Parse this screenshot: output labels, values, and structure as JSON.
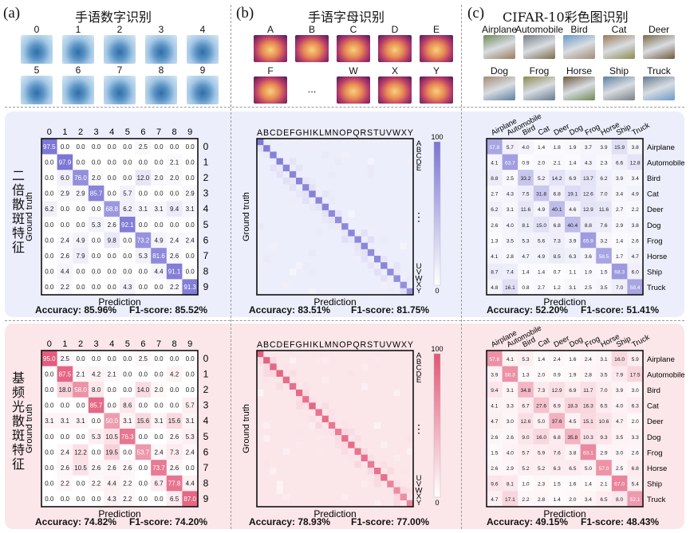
{
  "panels": [
    {
      "letter": "(a)",
      "title": "手语数字识别",
      "thumbs": [
        "0",
        "1",
        "2",
        "3",
        "4",
        "5",
        "6",
        "7",
        "8",
        "9"
      ]
    },
    {
      "letter": "(b)",
      "title": "手语字母识别",
      "thumbs": [
        "A",
        "B",
        "C",
        "D",
        "E",
        "F",
        "...",
        "W",
        "X",
        "Y"
      ]
    },
    {
      "letter": "(c)",
      "title": "CIFAR-10彩色图识别",
      "thumbs": [
        "Airplane",
        "Automobile",
        "Bird",
        "Cat",
        "Deer",
        "Dog",
        "Frog",
        "Horse",
        "Ship",
        "Truck"
      ]
    }
  ],
  "row_labels": {
    "top": "二倍散斑特征",
    "bottom": "基频光散斑特征"
  },
  "axis": {
    "ground_truth": "Ground truth",
    "prediction": "Prediction"
  },
  "letters": [
    "A",
    "B",
    "C",
    "D",
    "E",
    "F",
    "G",
    "H",
    "I",
    "K",
    "L",
    "M",
    "N",
    "O",
    "P",
    "Q",
    "R",
    "S",
    "T",
    "U",
    "V",
    "W",
    "X",
    "Y"
  ],
  "letters_header": "ABCDEFGHIKLMNOPQRSTUVWXY",
  "letters_right_top": [
    "A",
    "B",
    "C",
    "D",
    "E"
  ],
  "letters_right_bottom": [
    "U",
    "V",
    "W",
    "X",
    "Y"
  ],
  "vertical_ellipsis": "⋮",
  "colors": {
    "top_band": "#eceefb",
    "bottom_band": "#fbe6ea",
    "top_accent": "#7a74d4",
    "bottom_accent": "#e25576"
  },
  "metrics": {
    "a_top": {
      "acc": "Accuracy: 85.96%",
      "f1": "F1-score: 85.52%"
    },
    "b_top": {
      "acc": "Accuracy: 83.51%",
      "f1": "F1-score: 81.75%"
    },
    "c_top": {
      "acc": "Accuracy: 52.20%",
      "f1": "F1-score: 51.41%"
    },
    "a_bot": {
      "acc": "Accuracy: 74.82%",
      "f1": "F1-score: 74.20%"
    },
    "b_bot": {
      "acc": "Accuracy: 78.93%",
      "f1": "F1-score: 77.00%"
    },
    "c_bot": {
      "acc": "Accuracy: 49.15%",
      "f1": "F1-score: 48.43%"
    }
  },
  "chart_data": [
    {
      "id": "a_top",
      "type": "heatmap",
      "title": "手语数字识别 — 二倍散斑特征",
      "categories": [
        "0",
        "1",
        "2",
        "3",
        "4",
        "5",
        "6",
        "7",
        "8",
        "9"
      ],
      "xlabel": "Prediction",
      "ylabel": "Ground truth",
      "values": [
        [
          97.5,
          0.0,
          0.0,
          0.0,
          0.0,
          0.0,
          2.5,
          0.0,
          0.0,
          0.0
        ],
        [
          0.0,
          97.9,
          0.0,
          0.0,
          0.0,
          0.0,
          0.0,
          0.0,
          2.1,
          0.0
        ],
        [
          0.0,
          6.0,
          76.0,
          2.0,
          0.0,
          0.0,
          12.0,
          2.0,
          2.0,
          0.0
        ],
        [
          0.0,
          2.9,
          2.9,
          85.7,
          0.0,
          5.7,
          0.0,
          0.0,
          0.0,
          2.9
        ],
        [
          6.2,
          0.0,
          0.0,
          0.0,
          68.8,
          6.2,
          3.1,
          3.1,
          9.4,
          3.1
        ],
        [
          0.0,
          0.0,
          0.0,
          5.3,
          2.6,
          92.1,
          0.0,
          0.0,
          0.0,
          0.0
        ],
        [
          0.0,
          2.4,
          4.9,
          0.0,
          9.8,
          0.0,
          73.2,
          4.9,
          2.4,
          2.4
        ],
        [
          0.0,
          2.6,
          7.9,
          0.0,
          0.0,
          0.0,
          5.3,
          81.6,
          2.6,
          0.0
        ],
        [
          0.0,
          4.4,
          0.0,
          0.0,
          0.0,
          0.0,
          0.0,
          4.4,
          91.1,
          0.0
        ],
        [
          0.0,
          2.2,
          0.0,
          0.0,
          0.0,
          4.3,
          0.0,
          0.0,
          2.2,
          91.3
        ]
      ]
    },
    {
      "id": "b_top",
      "type": "heatmap",
      "title": "手语字母识别 — 二倍散斑特征",
      "categories": [
        "A",
        "B",
        "C",
        "D",
        "E",
        "F",
        "G",
        "H",
        "I",
        "K",
        "L",
        "M",
        "N",
        "O",
        "P",
        "Q",
        "R",
        "S",
        "T",
        "U",
        "V",
        "W",
        "X",
        "Y"
      ],
      "xlabel": "Prediction",
      "ylabel": "Ground truth",
      "colorbar": [
        0,
        100
      ],
      "diagonal": [
        95,
        92,
        88,
        90,
        85,
        84,
        86,
        83,
        88,
        82,
        85,
        80,
        78,
        82,
        84,
        80,
        83,
        79,
        81,
        84,
        78,
        76,
        74,
        72
      ],
      "off_diagonal": "sparse low values (0-10)"
    },
    {
      "id": "c_top",
      "type": "heatmap",
      "title": "CIFAR-10彩色图识别 — 二倍散斑特征",
      "categories": [
        "Airplane",
        "Automobile",
        "Bird",
        "Cat",
        "Deer",
        "Dog",
        "Frog",
        "Horse",
        "Ship",
        "Truck"
      ],
      "xlabel": "Prediction",
      "ylabel": "",
      "values": [
        [
          57.8,
          5.7,
          4.0,
          1.4,
          1.8,
          1.9,
          3.7,
          3.9,
          15.9,
          3.8
        ],
        [
          4.1,
          63.7,
          0.9,
          2.0,
          2.1,
          1.4,
          4.3,
          2.3,
          6.6,
          12.8
        ],
        [
          8.8,
          2.5,
          33.2,
          5.2,
          14.2,
          6.9,
          13.7,
          6.2,
          3.9,
          3.4
        ],
        [
          2.7,
          4.3,
          7.5,
          31.8,
          6.8,
          19.1,
          12.6,
          7.0,
          3.4,
          4.9
        ],
        [
          6.2,
          3.1,
          11.6,
          4.9,
          40.1,
          4.6,
          12.9,
          11.6,
          2.7,
          2.2
        ],
        [
          2.6,
          4.0,
          8.1,
          15.0,
          6.8,
          40.4,
          8.8,
          7.6,
          2.9,
          3.8
        ],
        [
          1.3,
          3.5,
          5.3,
          5.6,
          7.3,
          3.9,
          65.9,
          3.2,
          1.4,
          2.6
        ],
        [
          4.1,
          2.8,
          4.7,
          4.9,
          8.5,
          6.3,
          3.6,
          58.5,
          1.7,
          4.7
        ],
        [
          8.7,
          7.4,
          1.4,
          1.4,
          0.7,
          1.1,
          1.9,
          1.5,
          68.3,
          6.0
        ],
        [
          4.8,
          16.1,
          0.8,
          2.7,
          1.2,
          3.1,
          2.5,
          3.5,
          7.0,
          58.4
        ]
      ]
    },
    {
      "id": "a_bot",
      "type": "heatmap",
      "title": "手语数字识别 — 基频光散斑特征",
      "categories": [
        "0",
        "1",
        "2",
        "3",
        "4",
        "5",
        "6",
        "7",
        "8",
        "9"
      ],
      "xlabel": "Prediction",
      "ylabel": "Ground truth",
      "values": [
        [
          95.0,
          2.5,
          0.0,
          0.0,
          0.0,
          0.0,
          2.5,
          0.0,
          0.0,
          0.0
        ],
        [
          0.0,
          87.5,
          2.1,
          4.2,
          2.1,
          0.0,
          0.0,
          0.0,
          4.2,
          0.0
        ],
        [
          0.0,
          18.0,
          58.0,
          8.0,
          0.0,
          0.0,
          14.0,
          2.0,
          0.0,
          0.0
        ],
        [
          0.0,
          0.0,
          0.0,
          85.7,
          0.0,
          8.6,
          0.0,
          0.0,
          0.0,
          5.7
        ],
        [
          3.1,
          3.1,
          3.1,
          0.0,
          50.0,
          3.1,
          15.6,
          3.1,
          15.6,
          3.1
        ],
        [
          0.0,
          0.0,
          0.0,
          5.3,
          10.5,
          76.3,
          0.0,
          0.0,
          2.6,
          5.3
        ],
        [
          0.0,
          2.4,
          12.2,
          0.0,
          19.5,
          0.0,
          53.7,
          2.4,
          7.3,
          2.4
        ],
        [
          0.0,
          2.6,
          10.5,
          2.6,
          2.6,
          2.6,
          0.0,
          73.7,
          2.6,
          0.0
        ],
        [
          0.0,
          2.2,
          0.0,
          2.2,
          4.4,
          2.2,
          0.0,
          6.7,
          77.8,
          4.4
        ],
        [
          0.0,
          0.0,
          0.0,
          0.0,
          4.3,
          2.2,
          0.0,
          0.0,
          6.5,
          87.0
        ]
      ]
    },
    {
      "id": "b_bot",
      "type": "heatmap",
      "title": "手语字母识别 — 基频光散斑特征",
      "categories": [
        "A",
        "B",
        "C",
        "D",
        "E",
        "F",
        "G",
        "H",
        "I",
        "K",
        "L",
        "M",
        "N",
        "O",
        "P",
        "Q",
        "R",
        "S",
        "T",
        "U",
        "V",
        "W",
        "X",
        "Y"
      ],
      "xlabel": "Prediction",
      "ylabel": "Ground truth",
      "colorbar": [
        0,
        100
      ],
      "diagonal": [
        94,
        90,
        86,
        88,
        82,
        80,
        84,
        78,
        86,
        76,
        82,
        74,
        70,
        80,
        82,
        76,
        80,
        72,
        78,
        80,
        66,
        60,
        58,
        62
      ],
      "off_diagonal": "sparse low values (0-15)"
    },
    {
      "id": "c_bot",
      "type": "heatmap",
      "title": "CIFAR-10彩色图识别 — 基频光散斑特征",
      "categories": [
        "Airplane",
        "Automobile",
        "Bird",
        "Cat",
        "Deer",
        "Dog",
        "Frog",
        "Horse",
        "Ship",
        "Truck"
      ],
      "xlabel": "Prediction",
      "ylabel": "",
      "values": [
        [
          57.8,
          4.1,
          5.3,
          1.4,
          2.4,
          1.6,
          2.4,
          3.1,
          16.0,
          5.9
        ],
        [
          3.9,
          58.3,
          1.3,
          2.0,
          0.9,
          1.9,
          2.8,
          3.5,
          7.9,
          17.5
        ],
        [
          9.4,
          3.1,
          34.8,
          7.3,
          12.9,
          6.9,
          11.7,
          7.0,
          3.9,
          3.0
        ],
        [
          4.1,
          3.3,
          6.7,
          27.6,
          6.9,
          18.3,
          16.3,
          6.5,
          4.0,
          6.3
        ],
        [
          4.7,
          3.0,
          12.6,
          5.0,
          37.6,
          4.5,
          15.1,
          10.6,
          4.7,
          2.0
        ],
        [
          2.6,
          2.6,
          9.0,
          16.0,
          6.8,
          35.8,
          10.3,
          9.3,
          3.5,
          3.3
        ],
        [
          1.5,
          4.0,
          5.7,
          5.9,
          7.6,
          3.8,
          63.1,
          2.9,
          3.0,
          2.6
        ],
        [
          2.6,
          2.9,
          5.2,
          5.2,
          6.3,
          6.5,
          5.0,
          57.0,
          2.5,
          6.8
        ],
        [
          9.6,
          8.1,
          1.0,
          2.3,
          1.5,
          1.6,
          1.4,
          2.1,
          67.0,
          5.4
        ],
        [
          4.7,
          17.1,
          2.2,
          2.8,
          1.4,
          2.0,
          3.4,
          6.5,
          8.0,
          52.1
        ]
      ]
    }
  ]
}
